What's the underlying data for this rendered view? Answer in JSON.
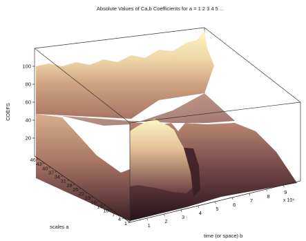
{
  "chart_data": {
    "type": "surface",
    "title": "Absolute Values of Ca,b Coefficients for a = 1 2 3 4 5 ...",
    "xlabel": "time (or space) b",
    "ylabel": "scales a",
    "zlabel": "COEFS",
    "x_ticks": [
      "1",
      "2",
      "3",
      "4",
      "5",
      "6",
      "7",
      "8",
      "9"
    ],
    "x_multiplier": "x 10⁴",
    "y_ticks": [
      "1",
      "4",
      "7",
      "10",
      "13",
      "16",
      "19",
      "22",
      "25",
      "28",
      "31",
      "34",
      "37",
      "40",
      "43",
      "46"
    ],
    "z_ticks": [
      "20",
      "40",
      "60",
      "80",
      "100"
    ],
    "xlim": [
      0,
      10
    ],
    "ylim": [
      1,
      48
    ],
    "zlim": [
      0,
      120
    ],
    "colormap": [
      "#2a151c",
      "#5a3238",
      "#8b5a55",
      "#b78670",
      "#d9b08c",
      "#efd9ac",
      "#fdf6c4"
    ],
    "grid": false,
    "surface_profile_large_scale": {
      "b": [
        0,
        0.5,
        1,
        1.5,
        2,
        2.5,
        3,
        3.5,
        4,
        4.5,
        5,
        5.5,
        6,
        6.5,
        7,
        7.5,
        8,
        8.5,
        9,
        9.5,
        10
      ],
      "coefs": [
        100,
        100,
        100,
        100,
        100,
        100,
        100,
        100,
        101,
        102,
        103,
        104,
        106,
        108,
        110,
        111,
        112,
        113,
        114,
        114,
        115
      ]
    },
    "surface_profile_small_scale": {
      "b": [
        0,
        0.5,
        1,
        1.5,
        2,
        2.5,
        3,
        3.5,
        4,
        4.5,
        5,
        5.5,
        6,
        6.5,
        7,
        7.5,
        8,
        8.5,
        9,
        9.5,
        10
      ],
      "coefs": [
        25,
        26,
        28,
        40,
        70,
        90,
        98,
        96,
        50,
        15,
        14,
        18,
        20,
        22,
        24,
        24,
        23,
        22,
        22,
        21,
        20
      ]
    }
  }
}
